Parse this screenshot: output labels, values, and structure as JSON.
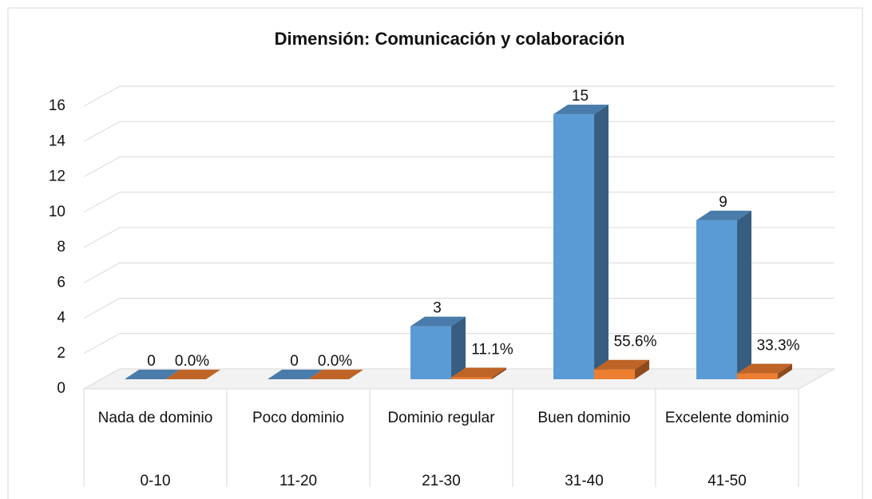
{
  "chart_data": {
    "type": "bar3d",
    "title": "Dimensión: Comunicación y colaboración",
    "categories": [
      "Nada de dominio",
      "Poco dominio",
      "Dominio regular",
      "Buen dominio",
      "Excelente dominio"
    ],
    "ranges": [
      "0-10",
      "11-20",
      "21-30",
      "31-40",
      "41-50"
    ],
    "series": [
      {
        "color": "#5b9bd5",
        "values": [
          0,
          0,
          3,
          15,
          9
        ]
      },
      {
        "color": "#ed7d31",
        "values": [
          0,
          0,
          0.111,
          0.556,
          0.333
        ],
        "value_labels": [
          "0.0%",
          "0.0%",
          "11.1%",
          "55.6%",
          "33.3%"
        ]
      }
    ],
    "ylim": [
      0,
      16
    ],
    "yticks": [
      0,
      2,
      4,
      6,
      8,
      10,
      12,
      14,
      16
    ],
    "grid": true
  }
}
